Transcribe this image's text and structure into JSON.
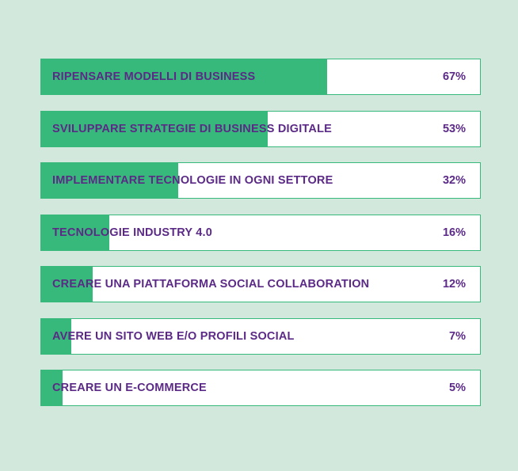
{
  "chart_data": {
    "type": "bar",
    "orientation": "horizontal",
    "grid": false,
    "xlim": [
      0,
      100
    ],
    "categories": [
      "RIPENSARE MODELLI DI BUSINESS",
      "SVILUPPARE STRATEGIE DI BUSINESS DIGITALE",
      "IMPLEMENTARE TECNOLOGIE IN OGNI SETTORE",
      "TECNOLOGIE INDUSTRY 4.0",
      "CREARE UNA PIATTAFORMA SOCIAL COLLABORATION",
      "AVERE UN SITO WEB E/O PROFILI SOCIAL",
      "CREARE UN E-COMMERCE"
    ],
    "values": [
      67,
      53,
      32,
      16,
      12,
      7,
      5
    ],
    "value_labels": [
      "67%",
      "53%",
      "32%",
      "16%",
      "12%",
      "7%",
      "5%"
    ],
    "colors": {
      "background": "#d2e8dd",
      "bar_fill": "#37b97c",
      "bar_track": "#ffffff",
      "text": "#5b2a86"
    }
  }
}
